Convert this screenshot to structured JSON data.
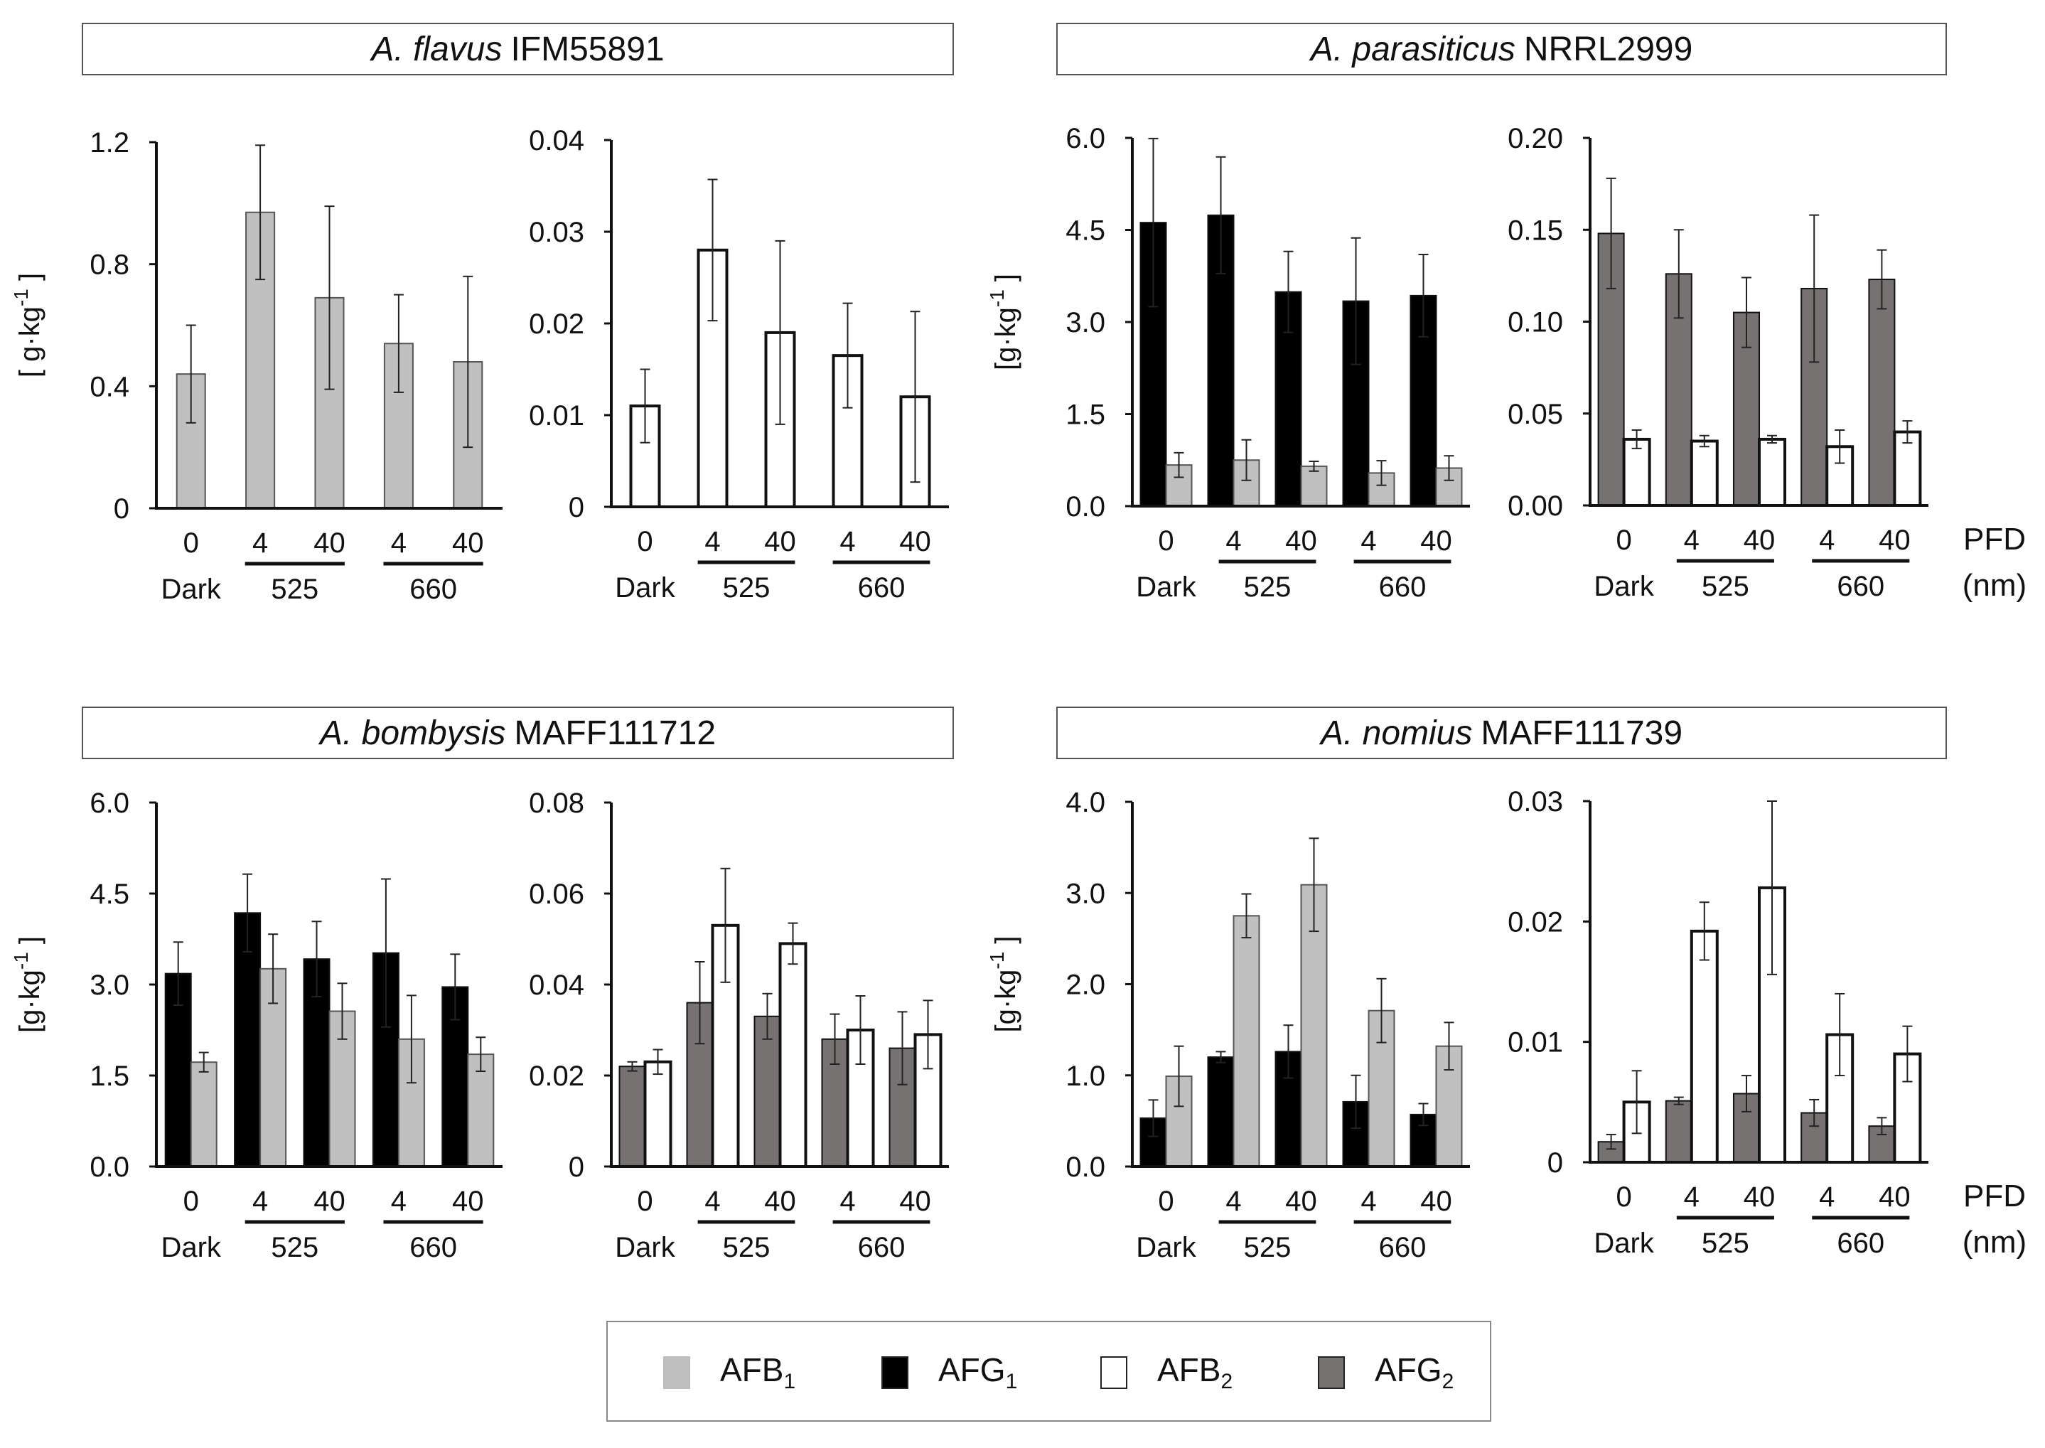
{
  "colors": {
    "AFB1": "#c0c0c0",
    "AFG1": "#000000",
    "AFB2": "#ffffff",
    "AFG2": "#777272",
    "axis": "#111111"
  },
  "legend": [
    {
      "series": "AFB1",
      "base": "AFB",
      "sub": "1"
    },
    {
      "series": "AFG1",
      "base": "AFG",
      "sub": "1"
    },
    {
      "series": "AFB2",
      "base": "AFB",
      "sub": "2"
    },
    {
      "series": "AFG2",
      "base": "AFG",
      "sub": "2"
    }
  ],
  "xaxis": {
    "ticks": [
      "0",
      "4",
      "40",
      "4",
      "40"
    ],
    "group_labels": [
      "Dark",
      "525",
      "660"
    ],
    "pfd_label": "PFD",
    "nm_label": "(nm)"
  },
  "panels": [
    {
      "species": "A. flavus",
      "strain": "IFM55891"
    },
    {
      "species": "A. parasiticus",
      "strain": "NRRL2999"
    },
    {
      "species": "A. bombysis",
      "strain": "MAFF111712"
    },
    {
      "species": "A. nomius",
      "strain": "MAFF111739"
    }
  ],
  "chart_data": [
    {
      "type": "bar",
      "title": "A. flavus IFM55891",
      "ylabel": "[ g·kg-1 ]",
      "categories": [
        "0 Dark",
        "4 (525)",
        "40 (525)",
        "4 (660)",
        "40 (660)"
      ],
      "yticks": [
        "0",
        "0.4",
        "0.8",
        "1.2"
      ],
      "ylim": [
        0,
        1.2
      ],
      "series": [
        {
          "name": "AFB1",
          "values": [
            0.44,
            0.97,
            0.69,
            0.54,
            0.48
          ],
          "errors": [
            0.16,
            0.22,
            0.3,
            0.16,
            0.28
          ]
        }
      ]
    },
    {
      "type": "bar",
      "title": "A. flavus IFM55891",
      "ylabel": "",
      "categories": [
        "0 Dark",
        "4 (525)",
        "40 (525)",
        "4 (660)",
        "40 (660)"
      ],
      "yticks": [
        "0",
        "0.01",
        "0.02",
        "0.03",
        "0.04"
      ],
      "ylim": [
        0,
        0.04
      ],
      "series": [
        {
          "name": "AFB2",
          "values": [
            0.011,
            0.028,
            0.019,
            0.0165,
            0.012
          ],
          "errors": [
            0.004,
            0.0077,
            0.01,
            0.0057,
            0.0093
          ]
        }
      ]
    },
    {
      "type": "bar",
      "title": "A. parasiticus NRRL2999",
      "ylabel": "[g·kg-1 ]",
      "categories": [
        "0 Dark",
        "4 (525)",
        "40 (525)",
        "4 (660)",
        "40 (660)"
      ],
      "yticks": [
        "0.0",
        "1.5",
        "3.0",
        "4.5",
        "6.0"
      ],
      "ylim": [
        0,
        6.0
      ],
      "series": [
        {
          "name": "AFG1",
          "values": [
            4.62,
            4.74,
            3.49,
            3.34,
            3.43
          ],
          "errors": [
            1.37,
            0.95,
            0.66,
            1.03,
            0.67
          ]
        },
        {
          "name": "AFB1",
          "values": [
            0.67,
            0.75,
            0.65,
            0.54,
            0.62
          ],
          "errors": [
            0.2,
            0.33,
            0.08,
            0.2,
            0.2
          ]
        }
      ]
    },
    {
      "type": "bar",
      "title": "A. parasiticus NRRL2999",
      "ylabel": "",
      "categories": [
        "0 Dark",
        "4 (525)",
        "40 (525)",
        "4 (660)",
        "40 (660)"
      ],
      "yticks": [
        "0.00",
        "0.05",
        "0.10",
        "0.15",
        "0.20"
      ],
      "ylim": [
        0,
        0.2
      ],
      "series": [
        {
          "name": "AFG2",
          "values": [
            0.148,
            0.126,
            0.105,
            0.118,
            0.123
          ],
          "errors": [
            0.03,
            0.024,
            0.019,
            0.04,
            0.016
          ]
        },
        {
          "name": "AFB2",
          "values": [
            0.036,
            0.035,
            0.036,
            0.032,
            0.04
          ],
          "errors": [
            0.005,
            0.003,
            0.002,
            0.009,
            0.006
          ]
        }
      ]
    },
    {
      "type": "bar",
      "title": "A. bombysis MAFF111712",
      "ylabel": "[g·kg-1 ]",
      "categories": [
        "0 Dark",
        "4 (525)",
        "40 (525)",
        "4 (660)",
        "40 (660)"
      ],
      "yticks": [
        "0.0",
        "1.5",
        "3.0",
        "4.5",
        "6.0"
      ],
      "ylim": [
        0,
        6.0
      ],
      "series": [
        {
          "name": "AFG1",
          "values": [
            3.18,
            4.18,
            3.42,
            3.52,
            2.96
          ],
          "errors": [
            0.52,
            0.64,
            0.62,
            1.22,
            0.54
          ]
        },
        {
          "name": "AFB1",
          "values": [
            1.72,
            3.26,
            2.56,
            2.1,
            1.85
          ],
          "errors": [
            0.16,
            0.57,
            0.46,
            0.72,
            0.28
          ]
        }
      ]
    },
    {
      "type": "bar",
      "title": "A. bombysis MAFF111712",
      "ylabel": "",
      "categories": [
        "0 Dark",
        "4 (525)",
        "40 (525)",
        "4 (660)",
        "40 (660)"
      ],
      "yticks": [
        "0",
        "0.02",
        "0.04",
        "0.06",
        "0.08"
      ],
      "ylim": [
        0,
        0.08
      ],
      "series": [
        {
          "name": "AFG2",
          "values": [
            0.022,
            0.036,
            0.033,
            0.028,
            0.026
          ],
          "errors": [
            0.001,
            0.009,
            0.005,
            0.0055,
            0.008
          ]
        },
        {
          "name": "AFB2",
          "values": [
            0.023,
            0.053,
            0.049,
            0.03,
            0.029
          ],
          "errors": [
            0.0027,
            0.0125,
            0.0045,
            0.0075,
            0.0075
          ]
        }
      ]
    },
    {
      "type": "bar",
      "title": "A. nomius MAFF111739",
      "ylabel": "[g·kg-1 ]",
      "categories": [
        "0 Dark",
        "4 (525)",
        "40 (525)",
        "4 (660)",
        "40 (660)"
      ],
      "yticks": [
        "0.0",
        "1.0",
        "2.0",
        "3.0",
        "4.0"
      ],
      "ylim": [
        0,
        4.0
      ],
      "series": [
        {
          "name": "AFG1",
          "values": [
            0.53,
            1.2,
            1.26,
            0.71,
            0.57
          ],
          "errors": [
            0.2,
            0.06,
            0.29,
            0.29,
            0.12
          ]
        },
        {
          "name": "AFB1",
          "values": [
            0.99,
            2.75,
            3.09,
            1.71,
            1.32
          ],
          "errors": [
            0.33,
            0.24,
            0.51,
            0.35,
            0.26
          ]
        }
      ]
    },
    {
      "type": "bar",
      "title": "A. nomius MAFF111739",
      "ylabel": "",
      "categories": [
        "0 Dark",
        "4 (525)",
        "40 (525)",
        "4 (660)",
        "40 (660)"
      ],
      "yticks": [
        "0",
        "0.01",
        "0.02",
        "0.03"
      ],
      "ylim": [
        0,
        0.03
      ],
      "series": [
        {
          "name": "AFG2",
          "values": [
            0.0017,
            0.0051,
            0.0057,
            0.0041,
            0.003
          ],
          "errors": [
            0.0006,
            0.0003,
            0.0015,
            0.0011,
            0.0007
          ]
        },
        {
          "name": "AFB2",
          "values": [
            0.005,
            0.0192,
            0.0228,
            0.0106,
            0.009
          ],
          "errors": [
            0.0026,
            0.0024,
            0.0072,
            0.0034,
            0.0023
          ]
        }
      ]
    }
  ]
}
